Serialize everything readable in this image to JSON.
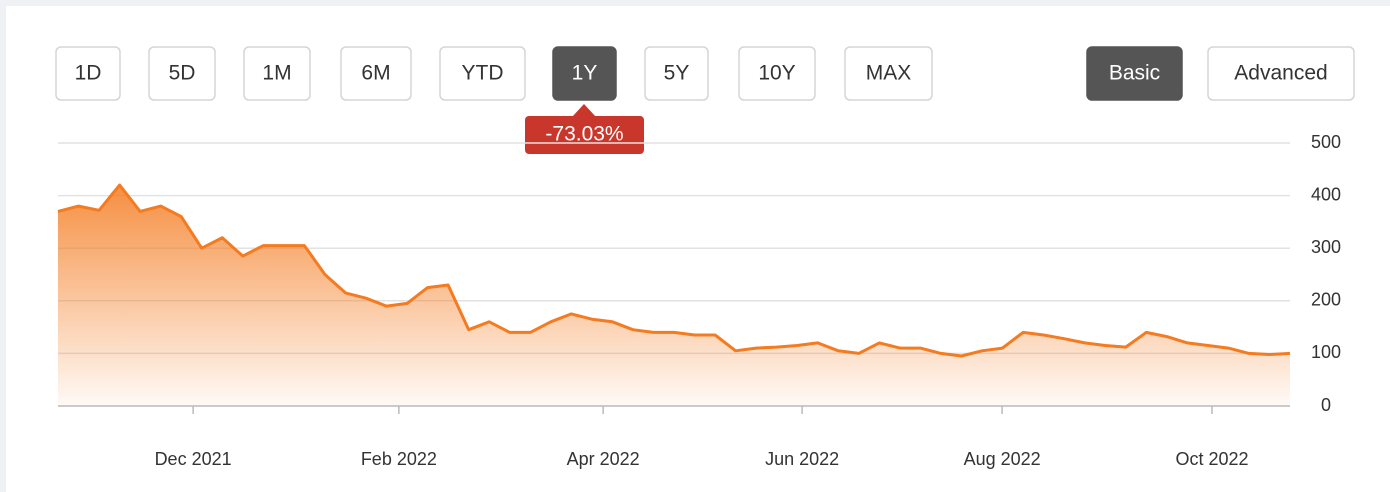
{
  "range_buttons": [
    "1D",
    "5D",
    "1M",
    "6M",
    "YTD",
    "1Y",
    "5Y",
    "10Y",
    "MAX"
  ],
  "view_buttons": [
    "Basic",
    "Advanced"
  ],
  "change_badge": "-73.03%",
  "chart_data": {
    "type": "area",
    "color": "#f47b20",
    "values": [
      370,
      380,
      372,
      420,
      370,
      380,
      360,
      300,
      320,
      285,
      305,
      305,
      305,
      250,
      215,
      205,
      190,
      195,
      225,
      230,
      145,
      160,
      140,
      140,
      160,
      175,
      165,
      160,
      145,
      140,
      140,
      135,
      135,
      105,
      110,
      112,
      115,
      120,
      105,
      100,
      120,
      110,
      110,
      100,
      95,
      105,
      110,
      140,
      135,
      128,
      120,
      115,
      112,
      140,
      132,
      120,
      115,
      110,
      100,
      98,
      100
    ],
    "xlim": [
      0,
      60
    ],
    "xticks": [
      {
        "value": 6.58,
        "label": "Dec 2021"
      },
      {
        "value": 16.6,
        "label": "Feb 2022"
      },
      {
        "value": 26.55,
        "label": "Apr 2022"
      },
      {
        "value": 36.24,
        "label": "Jun 2022"
      },
      {
        "value": 45.98,
        "label": "Aug 2022"
      },
      {
        "value": 56.2,
        "label": "Oct 2022"
      }
    ],
    "ylim": [
      0,
      500
    ],
    "yticks": [
      0,
      100,
      200,
      300,
      400,
      500
    ],
    "grid": true
  }
}
